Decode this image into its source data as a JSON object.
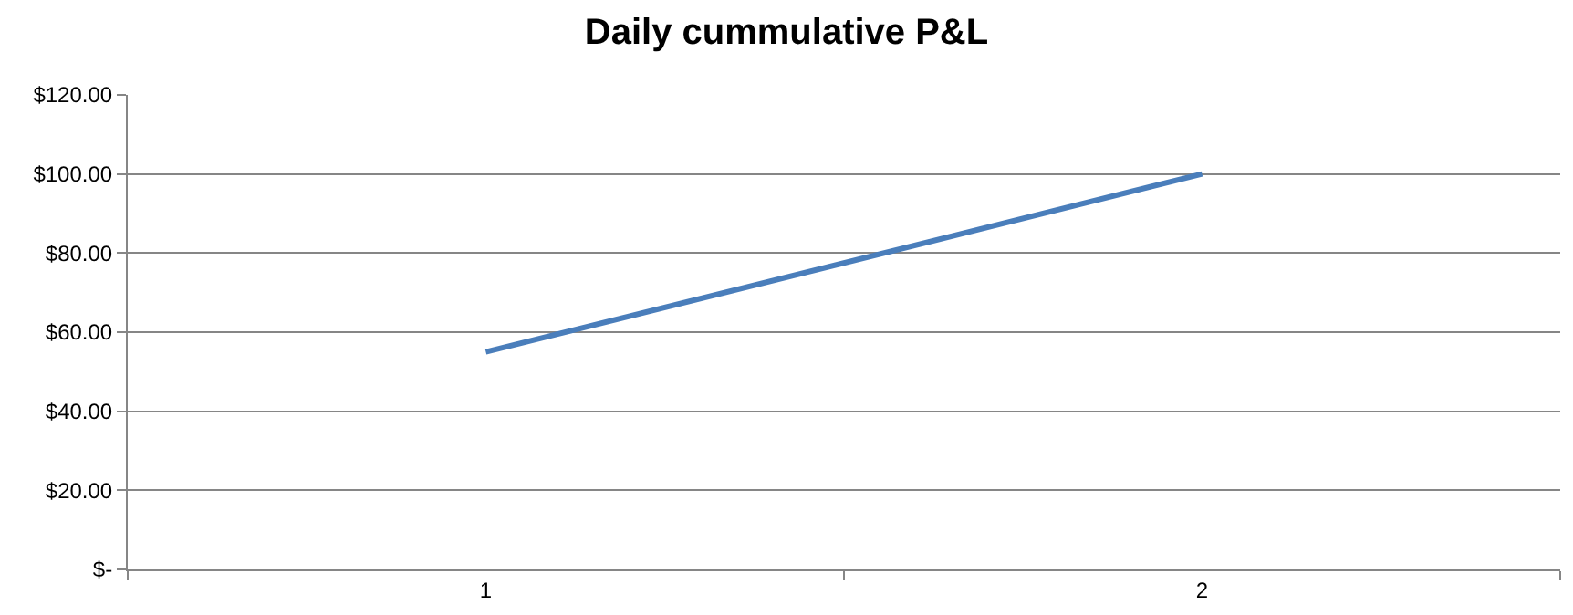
{
  "chart_data": {
    "type": "line",
    "title": "Daily cummulative P&L",
    "categories": [
      "1",
      "2"
    ],
    "series": [
      {
        "color": "#4a7ebb",
        "values": [
          55,
          100
        ]
      }
    ],
    "ylim": [
      0,
      120
    ],
    "yticks": [
      {
        "value": 0,
        "label": "$-"
      },
      {
        "value": 20,
        "label": "$20.00"
      },
      {
        "value": 40,
        "label": "$40.00"
      },
      {
        "value": 60,
        "label": "$60.00"
      },
      {
        "value": 80,
        "label": "$80.00"
      },
      {
        "value": 100,
        "label": "$100.00"
      },
      {
        "value": 120,
        "label": "$120.00"
      }
    ],
    "grid": "y",
    "legend": false,
    "marker": "none",
    "line_style": "solid"
  }
}
